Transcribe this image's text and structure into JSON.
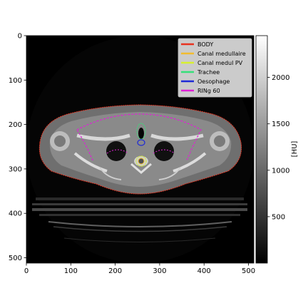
{
  "image": {
    "x_ticks": [
      "0",
      "100",
      "200",
      "300",
      "400",
      "500"
    ],
    "y_ticks": [
      "0",
      "100",
      "200",
      "300",
      "400",
      "500"
    ],
    "x_range": [
      0,
      512
    ],
    "y_range": [
      0,
      512
    ]
  },
  "legend": {
    "placement": "top-right",
    "items": [
      {
        "label": "BODY",
        "color": "#e8321e"
      },
      {
        "label": "Canal medullaire",
        "color": "#f2bc2e"
      },
      {
        "label": "Canal medul PV",
        "color": "#d7f02e"
      },
      {
        "label": "Trachee",
        "color": "#35e07a"
      },
      {
        "label": "Oesophage",
        "color": "#1e2ad6"
      },
      {
        "label": "RINg 60",
        "color": "#e020d6"
      }
    ]
  },
  "colorbar": {
    "label": "[HU]",
    "ticks": [
      "500",
      "1000",
      "1500",
      "2000"
    ],
    "range": [
      0,
      2450
    ]
  }
}
